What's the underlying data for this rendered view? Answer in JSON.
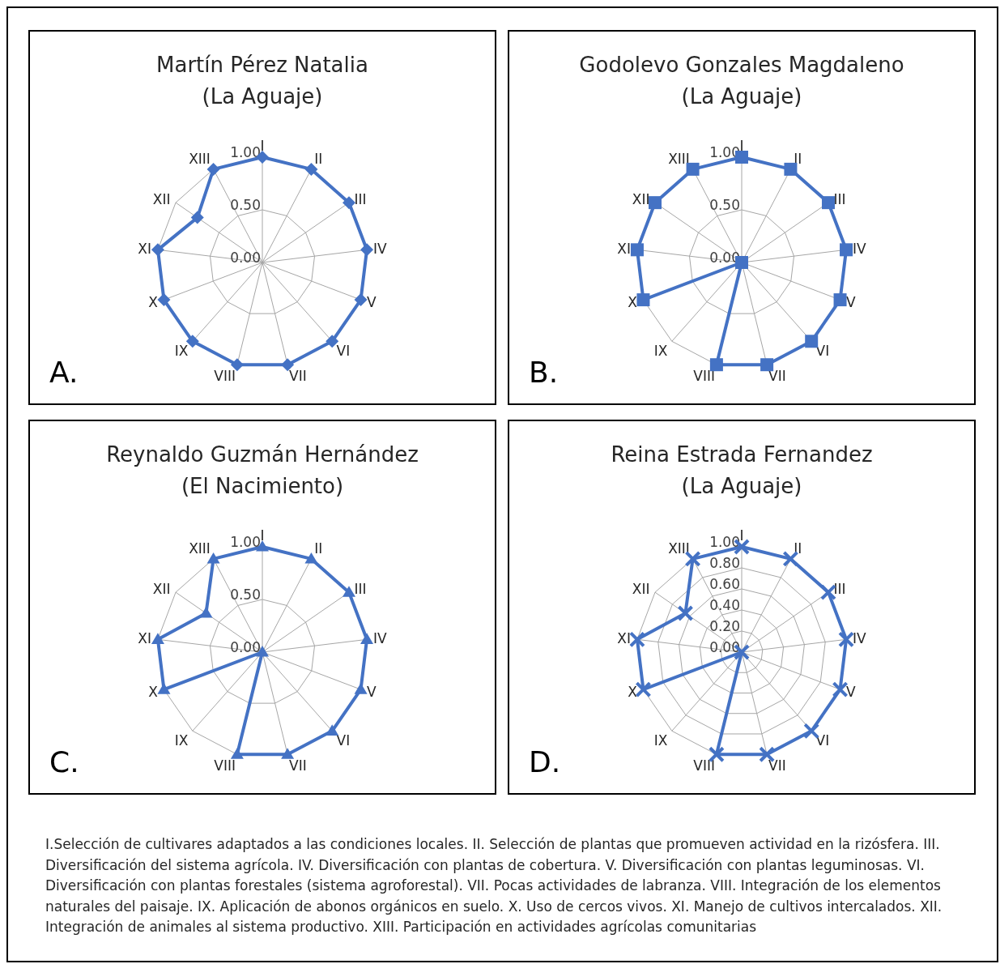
{
  "chart_data": [
    {
      "type": "radar",
      "title": "Martín Pérez Natalia",
      "subtitle": "(La Aguaje)",
      "categories": [
        "I",
        "II",
        "III",
        "IV",
        "V",
        "VI",
        "VII",
        "VIII",
        "IX",
        "X",
        "XI",
        "XII",
        "XIII"
      ],
      "series": [
        {
          "color": "#4472c4",
          "values": [
            1,
            1,
            1,
            1,
            1,
            1,
            1,
            1,
            1,
            1,
            1,
            0.75,
            1
          ]
        }
      ],
      "ylim": [
        0,
        1
      ],
      "yticks": [
        {
          "value": 0,
          "label": "0.00"
        },
        {
          "value": 0.5,
          "label": "0.50"
        },
        {
          "value": 1,
          "label": "1.00"
        }
      ],
      "grid": true,
      "marker": "diamond",
      "annotations": [
        "A."
      ]
    },
    {
      "type": "radar",
      "title": "Godolevo Gonzales Magdaleno",
      "subtitle": "(La Aguaje)",
      "categories": [
        "I",
        "II",
        "III",
        "IV",
        "V",
        "VI",
        "VII",
        "VIII",
        "IX",
        "X",
        "XI",
        "XII",
        "XIII"
      ],
      "series": [
        {
          "color": "#4472c4",
          "values": [
            1,
            1,
            1,
            1,
            1,
            1,
            1,
            1,
            0,
            1,
            1,
            1,
            1
          ]
        }
      ],
      "ylim": [
        0,
        1
      ],
      "yticks": [
        {
          "value": 0,
          "label": "0.00"
        },
        {
          "value": 0.5,
          "label": "0.50"
        },
        {
          "value": 1,
          "label": "1.00"
        }
      ],
      "grid": true,
      "marker": "square",
      "annotations": [
        "B."
      ]
    },
    {
      "type": "radar",
      "title": "Reynaldo Guzmán Hernández",
      "subtitle": "(El Nacimiento)",
      "categories": [
        "I",
        "II",
        "III",
        "IV",
        "V",
        "VI",
        "VII",
        "VIII",
        "IX",
        "X",
        "XI",
        "XII",
        "XIII"
      ],
      "series": [
        {
          "color": "#4472c4",
          "values": [
            1,
            1,
            1,
            1,
            1,
            1,
            1,
            1,
            0,
            1,
            1,
            0.65,
            1
          ]
        }
      ],
      "ylim": [
        0,
        1
      ],
      "yticks": [
        {
          "value": 0,
          "label": "0.00"
        },
        {
          "value": 0.5,
          "label": "0.50"
        },
        {
          "value": 1,
          "label": "1.00"
        }
      ],
      "grid": true,
      "marker": "triangle",
      "annotations": [
        "C."
      ]
    },
    {
      "type": "radar",
      "title": "Reina Estrada Fernandez",
      "subtitle": "(La Aguaje)",
      "categories": [
        "I",
        "II",
        "III",
        "IV",
        "V",
        "VI",
        "VII",
        "VIII",
        "IX",
        "X",
        "XI",
        "XII",
        "XIII"
      ],
      "series": [
        {
          "color": "#4472c4",
          "values": [
            1,
            1,
            1,
            1,
            1,
            1,
            1,
            1,
            0,
            1,
            1,
            0.65,
            1
          ]
        }
      ],
      "ylim": [
        0,
        1
      ],
      "yticks": [
        {
          "value": 0,
          "label": "0.00"
        },
        {
          "value": 0.2,
          "label": "0.20"
        },
        {
          "value": 0.4,
          "label": "0.40"
        },
        {
          "value": 0.6,
          "label": "0.60"
        },
        {
          "value": 0.8,
          "label": "0.80"
        },
        {
          "value": 1,
          "label": "1.00"
        }
      ],
      "grid": true,
      "marker": "cross",
      "annotations": [
        "D.",
        "I.Selección de cultivares adaptados a las condiciones locales. II. Selección de plantas que promueven actividad en la rizósfera. III. Diversificación del sistema agrícola. IV. Diversificación con plantas de cobertura. V. Diversificación con plantas leguminosas. VI. Diversificación con plantas forestales (sistema agroforestal). VII. Pocas actividades de labranza. VIII. Integración de los elementos naturales del paisaje. IX. Aplicación de abonos orgánicos en suelo. X. Uso de cercos vivos. XI. Manejo de cultivos intercalados. XII. Integración de animales al sistema productivo. XIII. Participación en actividades agrícolas comunitarias"
      ]
    }
  ]
}
